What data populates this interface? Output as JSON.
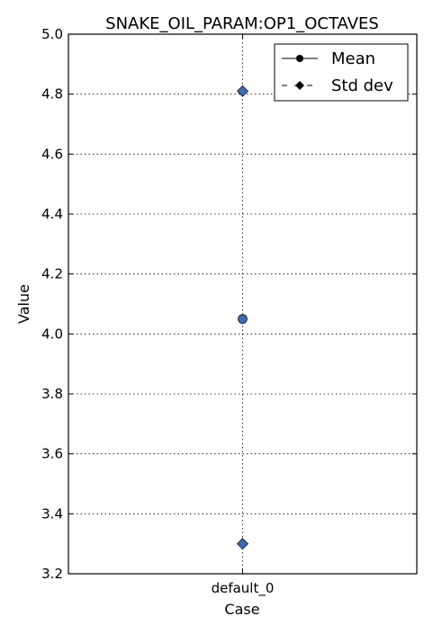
{
  "chart_data": {
    "type": "scatter",
    "title": "SNAKE_OIL_PARAM:OP1_OCTAVES",
    "xlabel": "Case",
    "ylabel": "Value",
    "categories": [
      "default_0"
    ],
    "ylim": [
      3.2,
      5.0
    ],
    "yticks": [
      3.2,
      3.4,
      3.6,
      3.8,
      4.0,
      4.2,
      4.4,
      4.6,
      4.8,
      5.0
    ],
    "grid": true,
    "legend_position": "top-right",
    "colors": {
      "marker": "#3b6bb5"
    },
    "series": [
      {
        "name": "Mean",
        "marker": "circle",
        "line": "solid",
        "values": [
          4.05
        ]
      },
      {
        "name": "Std dev",
        "marker": "diamond",
        "line": "dashed",
        "values": [
          [
            4.81,
            3.3
          ]
        ]
      }
    ]
  }
}
